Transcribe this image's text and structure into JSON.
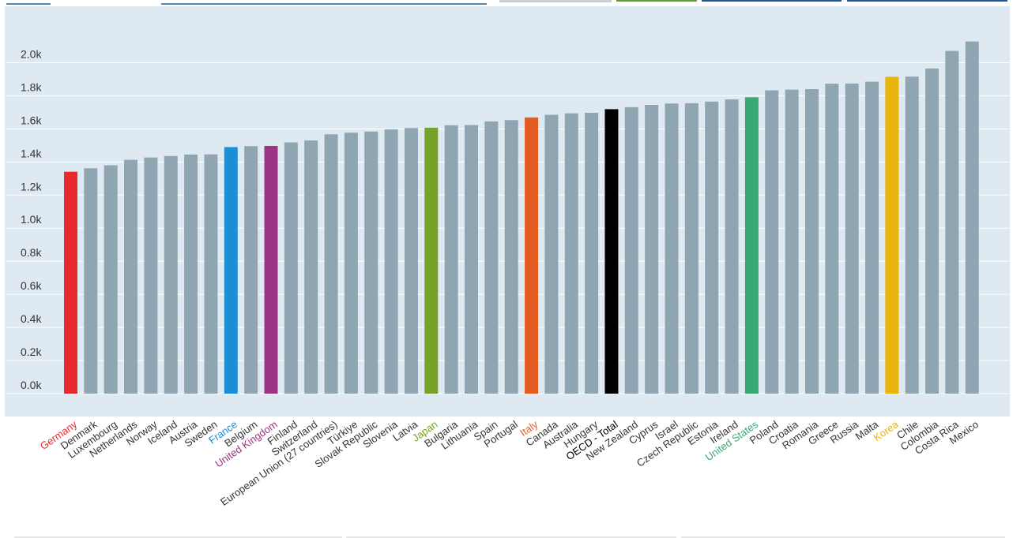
{
  "chart_data": {
    "type": "bar",
    "title": "",
    "xlabel": "",
    "ylabel": "",
    "ylim": [
      0,
      2200
    ],
    "yticks": [
      0,
      200,
      400,
      600,
      800,
      1000,
      1200,
      1400,
      1600,
      1800,
      2000
    ],
    "ytick_labels": [
      "0.0k",
      "0.2k",
      "0.4k",
      "0.6k",
      "0.8k",
      "1.0k",
      "1.2k",
      "1.4k",
      "1.6k",
      "1.8k",
      "2.0k"
    ],
    "grid": true,
    "categories": [
      "Germany",
      "Denmark",
      "Luxembourg",
      "Netherlands",
      "Norway",
      "Iceland",
      "Austria",
      "Sweden",
      "France",
      "Belgium",
      "United Kingdom",
      "Finland",
      "Switzerland",
      "European Union (27 countries)",
      "Türkiye",
      "Slovak Republic",
      "Slovenia",
      "Latvia",
      "Japan",
      "Bulgaria",
      "Lithuania",
      "Spain",
      "Portugal",
      "Italy",
      "Canada",
      "Australia",
      "Hungary",
      "OECD - Total",
      "New Zealand",
      "Cyprus",
      "Israel",
      "Czech Republic",
      "Estonia",
      "Ireland",
      "United States",
      "Poland",
      "Croatia",
      "Romania",
      "Greece",
      "Russia",
      "Malta",
      "Korea",
      "Chile",
      "Colombia",
      "Costa Rica",
      "Mexico"
    ],
    "values": [
      1341,
      1362,
      1380,
      1413,
      1427,
      1436,
      1445,
      1446,
      1490,
      1496,
      1497,
      1518,
      1530,
      1567,
      1577,
      1584,
      1597,
      1605,
      1607,
      1622,
      1623,
      1645,
      1653,
      1669,
      1685,
      1694,
      1697,
      1719,
      1731,
      1745,
      1753,
      1755,
      1765,
      1778,
      1791,
      1833,
      1837,
      1840,
      1873,
      1874,
      1885,
      1915,
      1916,
      1965,
      2071,
      2128
    ],
    "colors": {
      "default": "#8fa5b2",
      "Germany": "#e8292e",
      "France": "#1b8ed6",
      "United Kingdom": "#9b3482",
      "Japan": "#76a22a",
      "Italy": "#e35c22",
      "OECD - Total": "#000000",
      "United States": "#3aa874",
      "Korea": "#e7b40d"
    },
    "label_colors": {
      "default": "#333333",
      "Germany": "#e8292e",
      "France": "#1b8ed6",
      "United Kingdom": "#9b3482",
      "Japan": "#76a22a",
      "Italy": "#e35c22",
      "OECD - Total": "#000000",
      "United States": "#3aa874",
      "Korea": "#e7b40d"
    },
    "plot_background": "#dfe9f1",
    "gridline_color": "#ffffff"
  }
}
